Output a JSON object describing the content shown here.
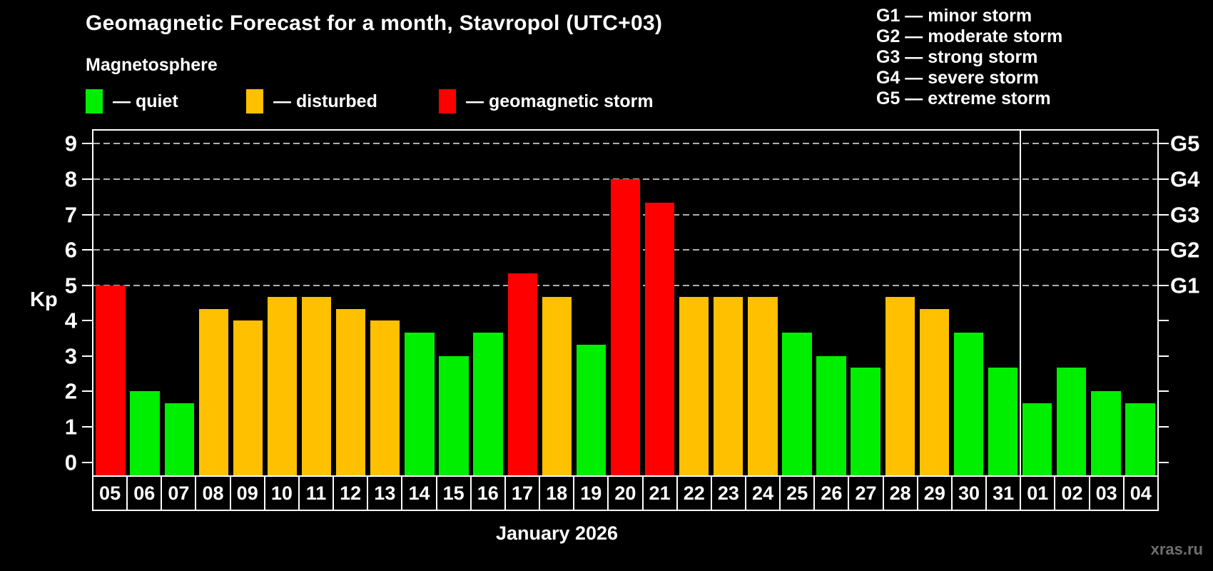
{
  "title": "Geomagnetic Forecast for a month, Stavropol (UTC+03)",
  "subtitle": "Magnetosphere",
  "legend": {
    "quiet": {
      "label": "— quiet",
      "color": "#00ee00"
    },
    "disturbed": {
      "label": "— disturbed",
      "color": "#ffc000"
    },
    "storm": {
      "label": "— geomagnetic storm",
      "color": "#ff0000"
    }
  },
  "g_scale_legend": [
    "G1 — minor storm",
    "G2 — moderate storm",
    "G3 — strong storm",
    "G4 — severe storm",
    "G5 — extreme storm"
  ],
  "watermark": "xras.ru",
  "watermark_color": "#6f6f6f",
  "chart_data": {
    "type": "bar",
    "title": "Geomagnetic Forecast for a month, Stavropol (UTC+03)",
    "xlabel": "January 2026",
    "ylabel": "Kp",
    "ylim": [
      0,
      9
    ],
    "y_ticks": [
      0,
      1,
      2,
      3,
      4,
      5,
      6,
      7,
      8,
      9
    ],
    "gridlines_at": [
      5,
      6,
      7,
      8,
      9
    ],
    "grid_color": "#b0b0b0",
    "axis_color": "#ffffff",
    "legend_position": "top",
    "right_axis_labels": {
      "5": "G1",
      "6": "G2",
      "7": "G3",
      "8": "G4",
      "9": "G5"
    },
    "month_separator_after_index": 26,
    "colors": {
      "quiet": "#00ee00",
      "disturbed": "#ffc000",
      "storm": "#ff0000"
    },
    "bars": [
      {
        "day": "05",
        "kp": 5,
        "level": "storm"
      },
      {
        "day": "06",
        "kp": 2,
        "level": "quiet"
      },
      {
        "day": "07",
        "kp": 1.67,
        "level": "quiet"
      },
      {
        "day": "08",
        "kp": 4.33,
        "level": "disturbed"
      },
      {
        "day": "09",
        "kp": 4,
        "level": "disturbed"
      },
      {
        "day": "10",
        "kp": 4.67,
        "level": "disturbed"
      },
      {
        "day": "11",
        "kp": 4.67,
        "level": "disturbed"
      },
      {
        "day": "12",
        "kp": 4.33,
        "level": "disturbed"
      },
      {
        "day": "13",
        "kp": 4,
        "level": "disturbed"
      },
      {
        "day": "14",
        "kp": 3.67,
        "level": "quiet"
      },
      {
        "day": "15",
        "kp": 3,
        "level": "quiet"
      },
      {
        "day": "16",
        "kp": 3.67,
        "level": "quiet"
      },
      {
        "day": "17",
        "kp": 5.33,
        "level": "storm"
      },
      {
        "day": "18",
        "kp": 4.67,
        "level": "disturbed"
      },
      {
        "day": "19",
        "kp": 3.33,
        "level": "quiet"
      },
      {
        "day": "20",
        "kp": 8,
        "level": "storm"
      },
      {
        "day": "21",
        "kp": 7.33,
        "level": "storm"
      },
      {
        "day": "22",
        "kp": 4.67,
        "level": "disturbed"
      },
      {
        "day": "23",
        "kp": 4.67,
        "level": "disturbed"
      },
      {
        "day": "24",
        "kp": 4.67,
        "level": "disturbed"
      },
      {
        "day": "25",
        "kp": 3.67,
        "level": "quiet"
      },
      {
        "day": "26",
        "kp": 3,
        "level": "quiet"
      },
      {
        "day": "27",
        "kp": 2.67,
        "level": "quiet"
      },
      {
        "day": "28",
        "kp": 4.67,
        "level": "disturbed"
      },
      {
        "day": "29",
        "kp": 4.33,
        "level": "disturbed"
      },
      {
        "day": "30",
        "kp": 3.67,
        "level": "quiet"
      },
      {
        "day": "31",
        "kp": 2.67,
        "level": "quiet"
      },
      {
        "day": "01",
        "kp": 1.67,
        "level": "quiet"
      },
      {
        "day": "02",
        "kp": 2.67,
        "level": "quiet"
      },
      {
        "day": "03",
        "kp": 2,
        "level": "quiet"
      },
      {
        "day": "04",
        "kp": 1.67,
        "level": "quiet"
      }
    ]
  }
}
